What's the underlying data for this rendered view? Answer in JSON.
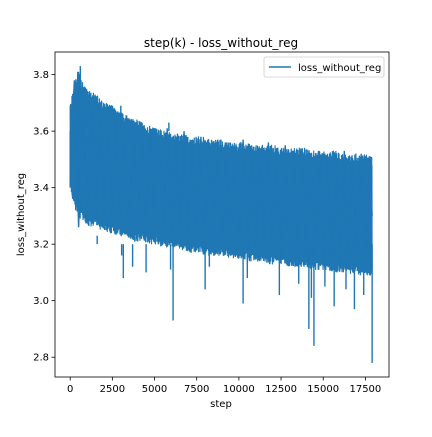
{
  "chart_data": {
    "type": "line",
    "title": "step(k) - loss_without_reg",
    "xlabel": "step",
    "ylabel": "loss_without_reg",
    "xlim": [
      -900,
      18900
    ],
    "ylim": [
      2.73,
      3.88
    ],
    "xticks": [
      0,
      2500,
      5000,
      7500,
      10000,
      12500,
      15000,
      17500
    ],
    "xtick_labels": [
      "0",
      "2500",
      "5000",
      "7500",
      "10000",
      "12500",
      "15000",
      "17500"
    ],
    "yticks": [
      2.8,
      3.0,
      3.2,
      3.4,
      3.6,
      3.8
    ],
    "ytick_labels": [
      "2.8",
      "3.0",
      "3.2",
      "3.4",
      "3.6",
      "3.8"
    ],
    "grid": false,
    "legend_position": "upper right",
    "series": [
      {
        "name": "loss_without_reg",
        "color": "#1f77b4",
        "x": [
          0,
          250,
          500,
          750,
          1000,
          1250,
          1500,
          1750,
          2000,
          2250,
          2500,
          2750,
          3000,
          3250,
          3500,
          3750,
          4000,
          4250,
          4500,
          4750,
          5000,
          5250,
          5500,
          5750,
          6000,
          6250,
          6500,
          6750,
          7000,
          7250,
          7500,
          7750,
          8000,
          8250,
          8500,
          8750,
          9000,
          9250,
          9500,
          9750,
          10000,
          10250,
          10500,
          10750,
          11000,
          11250,
          11500,
          11750,
          12000,
          12250,
          12500,
          12750,
          13000,
          13250,
          13500,
          13750,
          14000,
          14250,
          14500,
          14750,
          15000,
          15250,
          15500,
          15750,
          16000,
          16250,
          16500,
          16750,
          17000,
          17250,
          17500,
          17750,
          17900
        ],
        "y": [
          3.5,
          3.78,
          3.26,
          3.72,
          3.33,
          3.68,
          3.29,
          3.66,
          3.31,
          3.65,
          3.27,
          3.64,
          3.3,
          3.62,
          3.25,
          3.63,
          3.28,
          3.61,
          3.24,
          3.6,
          3.26,
          3.6,
          3.2,
          3.61,
          3.23,
          3.58,
          3.22,
          3.6,
          3.24,
          3.57,
          3.2,
          3.58,
          3.19,
          3.56,
          3.21,
          3.57,
          3.18,
          3.56,
          3.2,
          3.55,
          3.18,
          3.57,
          3.17,
          3.55,
          3.2,
          3.54,
          3.16,
          3.56,
          3.18,
          3.54,
          3.15,
          3.55,
          3.17,
          3.53,
          3.16,
          3.54,
          3.14,
          3.52,
          3.15,
          3.53,
          3.13,
          3.52,
          3.15,
          3.51,
          3.12,
          3.53,
          3.14,
          3.5,
          3.12,
          3.52,
          3.11,
          3.5,
          3.3
        ],
        "band_upper": [
          3.69,
          3.77,
          3.81,
          3.77,
          3.75,
          3.74,
          3.73,
          3.72,
          3.7,
          3.7,
          3.69,
          3.67,
          3.67,
          3.66,
          3.65,
          3.64,
          3.64,
          3.63,
          3.62,
          3.62,
          3.61,
          3.61,
          3.6,
          3.6,
          3.59,
          3.59,
          3.59,
          3.59,
          3.58,
          3.58,
          3.58,
          3.58,
          3.58,
          3.57,
          3.57,
          3.57,
          3.57,
          3.56,
          3.56,
          3.56,
          3.56,
          3.56,
          3.56,
          3.55,
          3.55,
          3.55,
          3.55,
          3.55,
          3.55,
          3.55,
          3.54,
          3.54,
          3.54,
          3.54,
          3.54,
          3.54,
          3.54,
          3.53,
          3.53,
          3.53,
          3.53,
          3.53,
          3.53,
          3.53,
          3.52,
          3.52,
          3.52,
          3.52,
          3.52,
          3.52,
          3.52,
          3.51,
          3.51
        ],
        "band_lower": [
          3.4,
          3.33,
          3.3,
          3.28,
          3.27,
          3.26,
          3.26,
          3.25,
          3.25,
          3.24,
          3.24,
          3.23,
          3.23,
          3.22,
          3.22,
          3.21,
          3.21,
          3.21,
          3.2,
          3.2,
          3.2,
          3.19,
          3.19,
          3.19,
          3.18,
          3.18,
          3.18,
          3.18,
          3.17,
          3.17,
          3.17,
          3.17,
          3.16,
          3.16,
          3.16,
          3.16,
          3.16,
          3.15,
          3.15,
          3.15,
          3.15,
          3.15,
          3.14,
          3.14,
          3.14,
          3.14,
          3.14,
          3.13,
          3.13,
          3.13,
          3.13,
          3.13,
          3.12,
          3.12,
          3.12,
          3.12,
          3.12,
          3.11,
          3.11,
          3.11,
          3.11,
          3.11,
          3.1,
          3.1,
          3.1,
          3.1,
          3.1,
          3.09,
          3.09,
          3.09,
          3.09,
          3.09,
          3.09
        ],
        "spikes": [
          {
            "x": 0,
            "y": 3.4
          },
          {
            "x": 450,
            "y": 3.81
          },
          {
            "x": 600,
            "y": 3.83
          },
          {
            "x": 1600,
            "y": 3.23
          },
          {
            "x": 3000,
            "y": 3.69
          },
          {
            "x": 3050,
            "y": 3.16
          },
          {
            "x": 3150,
            "y": 3.08
          },
          {
            "x": 3700,
            "y": 3.12
          },
          {
            "x": 4500,
            "y": 3.1
          },
          {
            "x": 5850,
            "y": 3.63
          },
          {
            "x": 5950,
            "y": 3.11
          },
          {
            "x": 6100,
            "y": 2.93
          },
          {
            "x": 8000,
            "y": 3.04
          },
          {
            "x": 8250,
            "y": 3.12
          },
          {
            "x": 10250,
            "y": 2.99
          },
          {
            "x": 10500,
            "y": 3.08
          },
          {
            "x": 12400,
            "y": 3.02
          },
          {
            "x": 13550,
            "y": 3.06
          },
          {
            "x": 14150,
            "y": 2.9
          },
          {
            "x": 14300,
            "y": 3.01
          },
          {
            "x": 14450,
            "y": 2.84
          },
          {
            "x": 15100,
            "y": 3.05
          },
          {
            "x": 15650,
            "y": 2.98
          },
          {
            "x": 16350,
            "y": 3.04
          },
          {
            "x": 16850,
            "y": 2.97
          },
          {
            "x": 17400,
            "y": 3.02
          },
          {
            "x": 17900,
            "y": 2.78
          }
        ]
      }
    ]
  }
}
